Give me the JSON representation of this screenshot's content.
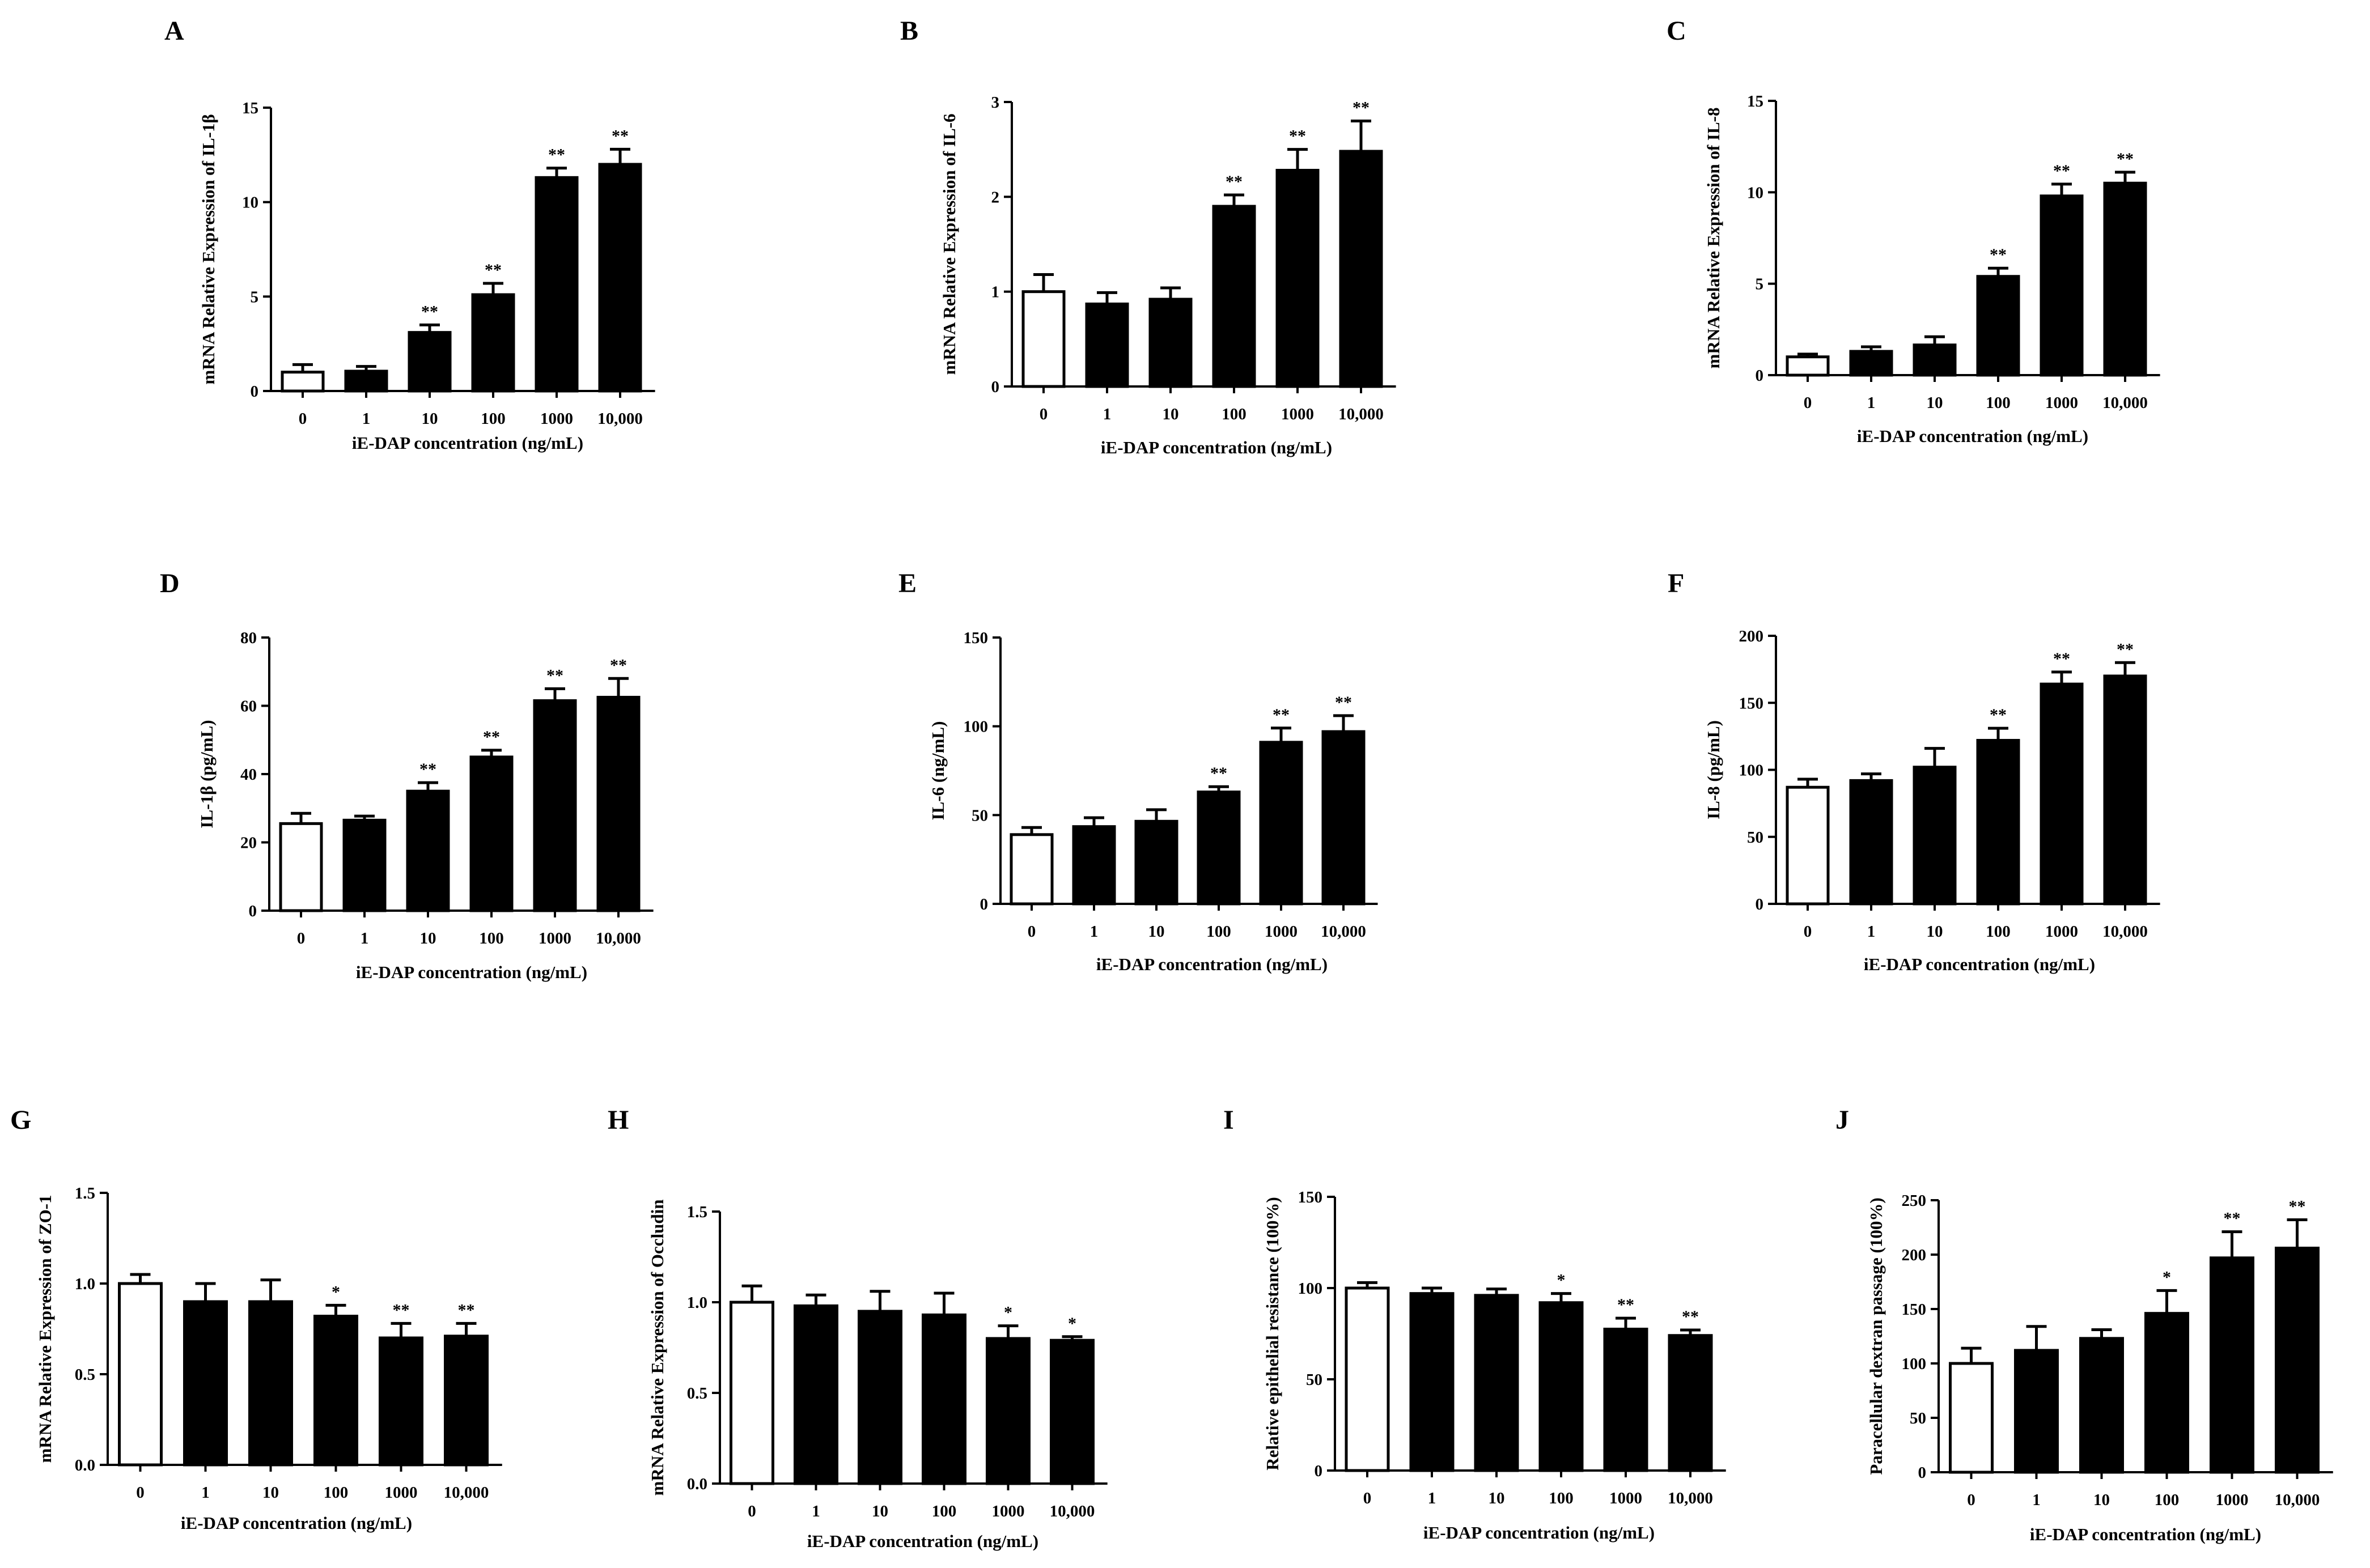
{
  "figure": {
    "background": "#ffffff",
    "bar_fill": "#000000",
    "control_fill": "#ffffff",
    "ink": "#000000"
  },
  "chart_data": [
    {
      "panel": "A",
      "type": "bar",
      "xlabel": "iE-DAP concentration (ng/mL)",
      "ylabel": "mRNA Relative Expression of IL-1β",
      "categories": [
        "0",
        "1",
        "10",
        "100",
        "1000",
        "10,000"
      ],
      "values": [
        1.0,
        1.05,
        3.1,
        5.1,
        11.3,
        12.0
      ],
      "errors": [
        0.4,
        0.25,
        0.4,
        0.6,
        0.5,
        0.8
      ],
      "significance": [
        "",
        "",
        "**",
        "**",
        "**",
        "**"
      ],
      "ylim": [
        0,
        15
      ],
      "yticks": [
        0,
        5,
        10,
        15
      ],
      "ytick_labels": [
        "0",
        "5",
        "10",
        "15"
      ]
    },
    {
      "panel": "B",
      "type": "bar",
      "xlabel": "iE-DAP concentration (ng/mL)",
      "ylabel": "mRNA Relative Expression of IL-6",
      "categories": [
        "0",
        "1",
        "10",
        "100",
        "1000",
        "10,000"
      ],
      "values": [
        1.0,
        0.87,
        0.92,
        1.9,
        2.28,
        2.48
      ],
      "errors": [
        0.18,
        0.12,
        0.12,
        0.12,
        0.22,
        0.32
      ],
      "significance": [
        "",
        "",
        "",
        "**",
        "**",
        "**"
      ],
      "ylim": [
        0,
        3
      ],
      "yticks": [
        0,
        1,
        2,
        3
      ],
      "ytick_labels": [
        "0",
        "1",
        "2",
        "3"
      ]
    },
    {
      "panel": "C",
      "type": "bar",
      "xlabel": "iE-DAP concentration (ng/mL)",
      "ylabel": "mRNA Relative Expression of IL-8",
      "categories": [
        "0",
        "1",
        "10",
        "100",
        "1000",
        "10,000"
      ],
      "values": [
        1.0,
        1.3,
        1.65,
        5.4,
        9.8,
        10.5
      ],
      "errors": [
        0.15,
        0.25,
        0.45,
        0.45,
        0.65,
        0.6
      ],
      "significance": [
        "",
        "",
        "",
        "**",
        "**",
        "**"
      ],
      "ylim": [
        0,
        15
      ],
      "yticks": [
        0,
        5,
        10,
        15
      ],
      "ytick_labels": [
        "0",
        "5",
        "10",
        "15"
      ]
    },
    {
      "panel": "D",
      "type": "bar",
      "xlabel": "iE-DAP concentration (ng/mL)",
      "ylabel": "IL-1β (pg/mL)",
      "categories": [
        "0",
        "1",
        "10",
        "100",
        "1000",
        "10,000"
      ],
      "values": [
        25.5,
        26.5,
        35,
        45,
        61.5,
        62.5
      ],
      "errors": [
        3,
        1.2,
        2.5,
        2,
        3.5,
        5.5
      ],
      "significance": [
        "",
        "",
        "**",
        "**",
        "**",
        "**"
      ],
      "ylim": [
        0,
        80
      ],
      "yticks": [
        0,
        20,
        40,
        60,
        80
      ],
      "ytick_labels": [
        "0",
        "20",
        "40",
        "60",
        "80"
      ]
    },
    {
      "panel": "E",
      "type": "bar",
      "xlabel": "iE-DAP concentration (ng/mL)",
      "ylabel": "IL-6 (ng/mL)",
      "categories": [
        "0",
        "1",
        "10",
        "100",
        "1000",
        "10,000"
      ],
      "values": [
        39,
        43.5,
        46.5,
        63,
        91,
        97
      ],
      "errors": [
        4,
        5,
        6.5,
        3,
        8,
        9
      ],
      "significance": [
        "",
        "",
        "",
        "**",
        "**",
        "**"
      ],
      "ylim": [
        0,
        150
      ],
      "yticks": [
        0,
        50,
        100,
        150
      ],
      "ytick_labels": [
        "0",
        "50",
        "100",
        "150"
      ]
    },
    {
      "panel": "F",
      "type": "bar",
      "xlabel": "iE-DAP concentration (ng/mL)",
      "ylabel": "IL-8 (pg/mL)",
      "categories": [
        "0",
        "1",
        "10",
        "100",
        "1000",
        "10,000"
      ],
      "values": [
        87,
        92,
        102,
        122,
        164,
        170
      ],
      "errors": [
        6,
        5,
        14,
        9,
        9,
        10
      ],
      "significance": [
        "",
        "",
        "",
        "**",
        "**",
        "**"
      ],
      "ylim": [
        0,
        200
      ],
      "yticks": [
        0,
        50,
        100,
        150,
        200
      ],
      "ytick_labels": [
        "0",
        "50",
        "100",
        "150",
        "200"
      ]
    },
    {
      "panel": "G",
      "type": "bar",
      "xlabel": "iE-DAP concentration (ng/mL)",
      "ylabel": "mRNA Relative Expression of ZO-1",
      "categories": [
        "0",
        "1",
        "10",
        "100",
        "1000",
        "10,000"
      ],
      "values": [
        1.0,
        0.9,
        0.9,
        0.82,
        0.7,
        0.71
      ],
      "errors": [
        0.05,
        0.1,
        0.12,
        0.06,
        0.08,
        0.07
      ],
      "significance": [
        "",
        "",
        "",
        "*",
        "**",
        "**"
      ],
      "ylim": [
        0,
        1.5
      ],
      "yticks": [
        0,
        0.5,
        1.0,
        1.5
      ],
      "ytick_labels": [
        "0.0",
        "0.5",
        "1.0",
        "1.5"
      ]
    },
    {
      "panel": "H",
      "type": "bar",
      "xlabel": "iE-DAP concentration (ng/mL)",
      "ylabel": "mRNA Relative Expression of Occludin",
      "categories": [
        "0",
        "1",
        "10",
        "100",
        "1000",
        "10,000"
      ],
      "values": [
        1.0,
        0.98,
        0.95,
        0.93,
        0.8,
        0.79
      ],
      "errors": [
        0.09,
        0.06,
        0.11,
        0.12,
        0.07,
        0.02
      ],
      "significance": [
        "",
        "",
        "",
        "",
        "*",
        "*"
      ],
      "ylim": [
        0,
        1.5
      ],
      "yticks": [
        0,
        0.5,
        1.0,
        1.5
      ],
      "ytick_labels": [
        "0.0",
        "0.5",
        "1.0",
        "1.5"
      ]
    },
    {
      "panel": "I",
      "type": "bar",
      "xlabel": "iE-DAP concentration (ng/mL)",
      "ylabel": "Relative epithelial resistance (100%)",
      "categories": [
        "0",
        "1",
        "10",
        "100",
        "1000",
        "10,000"
      ],
      "values": [
        100,
        97,
        96,
        92,
        77.5,
        74
      ],
      "errors": [
        3,
        3,
        3.5,
        5,
        6,
        3
      ],
      "significance": [
        "",
        "",
        "",
        "*",
        "**",
        "**"
      ],
      "ylim": [
        0,
        150
      ],
      "yticks": [
        0,
        50,
        100,
        150
      ],
      "ytick_labels": [
        "0",
        "50",
        "100",
        "150"
      ]
    },
    {
      "panel": "J",
      "type": "bar",
      "xlabel": "iE-DAP concentration (ng/mL)",
      "ylabel": "Paracellular dextran passage (100%)",
      "categories": [
        "0",
        "1",
        "10",
        "100",
        "1000",
        "10,000"
      ],
      "values": [
        100,
        112,
        123,
        146,
        197,
        206
      ],
      "errors": [
        14,
        22,
        8,
        21,
        24,
        26
      ],
      "significance": [
        "",
        "",
        "",
        "*",
        "**",
        "**"
      ],
      "ylim": [
        0,
        250
      ],
      "yticks": [
        0,
        50,
        100,
        150,
        200,
        250
      ],
      "ytick_labels": [
        "0",
        "50",
        "100",
        "150",
        "200",
        "250"
      ]
    }
  ]
}
